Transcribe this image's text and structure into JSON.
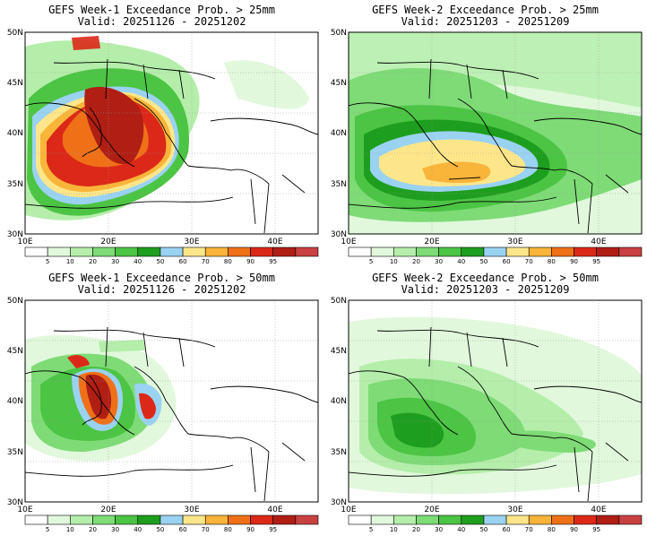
{
  "colorbar": {
    "ticks": [
      "5",
      "10",
      "20",
      "30",
      "40",
      "50",
      "60",
      "70",
      "80",
      "90",
      "95"
    ],
    "colors": [
      "#ffffff",
      "#e1f8dc",
      "#b4eeaa",
      "#7edb76",
      "#4cc444",
      "#1e9e1e",
      "#9ad2f2",
      "#fde68a",
      "#f9b43a",
      "#f07018",
      "#dc2818",
      "#b01e14",
      "#c84040"
    ]
  },
  "axes": {
    "lat_labels": [
      "50N",
      "45N",
      "40N",
      "35N",
      "30N"
    ],
    "lon_labels": [
      "10E",
      "20E",
      "30E",
      "40E"
    ]
  },
  "panels": [
    {
      "title": "GEFS Week-1 Exceedance Prob. > 25mm",
      "valid": "Valid: 20251126 - 20251202",
      "week": 1,
      "threshold_mm": 25
    },
    {
      "title": "GEFS Week-2 Exceedance Prob. > 25mm",
      "valid": "Valid: 20251203 - 20251209",
      "week": 2,
      "threshold_mm": 25
    },
    {
      "title": "GEFS Week-1 Exceedance Prob. > 50mm",
      "valid": "Valid: 20251126 - 20251202",
      "week": 1,
      "threshold_mm": 50
    },
    {
      "title": "GEFS Week-2 Exceedance Prob. > 50mm",
      "valid": "Valid: 20251203 - 20251209",
      "week": 2,
      "threshold_mm": 50
    }
  ]
}
